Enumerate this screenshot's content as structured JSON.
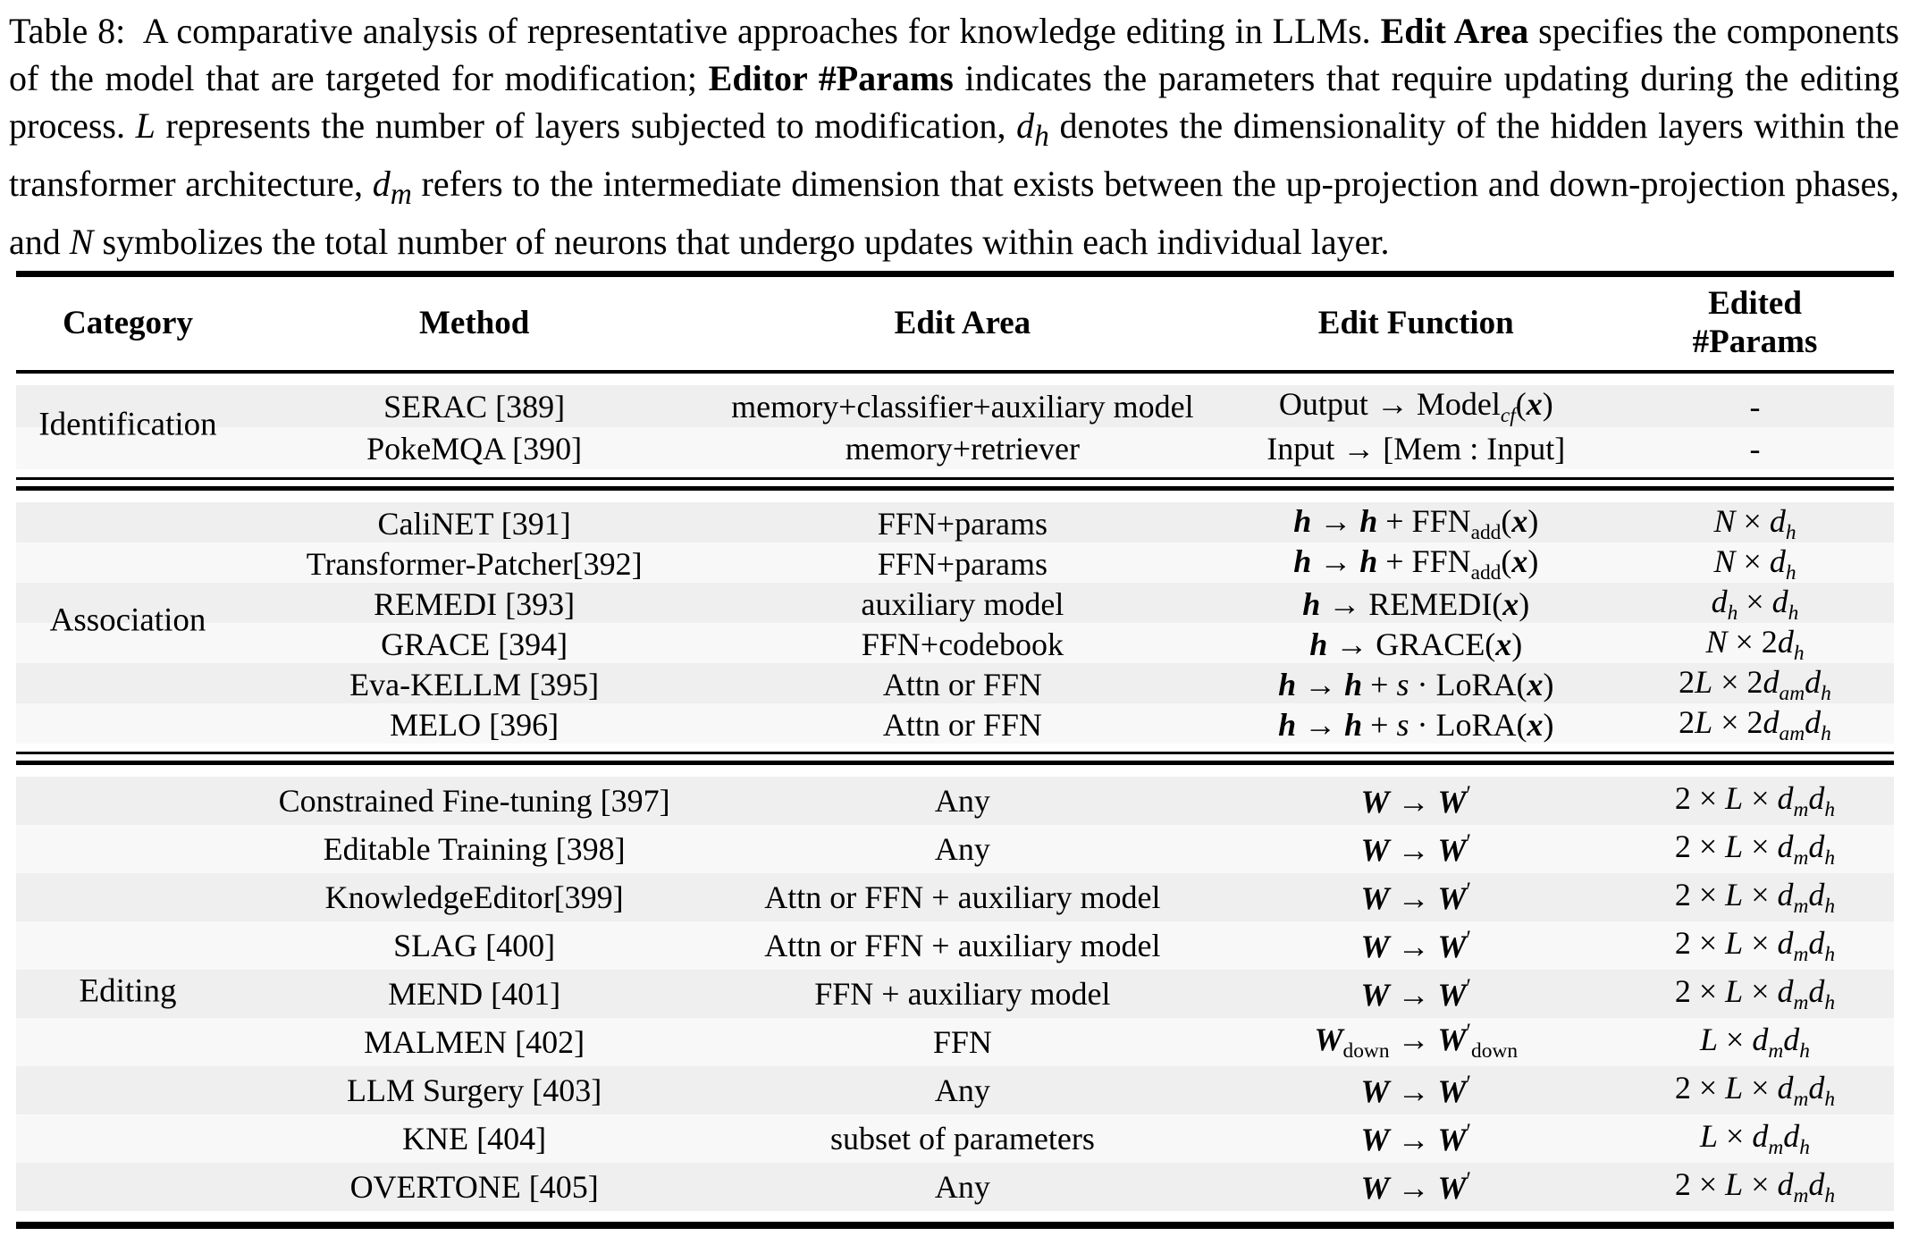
{
  "caption": {
    "html": "Table 8:&nbsp; A comparative analysis of representative approaches for knowledge editing in LLMs. <b>Edit Area</b> specifies the components of the model that are targeted for modification; <b>Editor #Params</b> indicates the parameters that require updating during the editing process. <i>L</i> represents the number of layers subjected to modification, <i>d<sub>h</sub></i> denotes the dimensionality of the hidden layers within the transformer architecture, <i>d<sub>m</sub></i> refers to the intermediate dimension that exists between the up-projection and down-projection phases, and <i>N</i> symbolizes the total number of neurons that undergo updates within each individual layer."
  },
  "table": {
    "stripe_colors": {
      "odd_row": "#efefef",
      "even_row": "#f8f8f9",
      "rule": "#000000"
    },
    "headers": {
      "category": "Category",
      "method": "Method",
      "edit_area": "Edit Area",
      "edit_function": "Edit Function",
      "edited_params": "Edited\n#Params"
    },
    "sections": [
      {
        "category": "Identification",
        "rows": [
          {
            "method": "SERAC [389]",
            "edit_area": "memory+classifier+auxiliary model",
            "edit_function_html": "Output → Model<sub><i>cf</i></sub>(<b><i>x</i></b>)",
            "edited_params_html": "-"
          },
          {
            "method": "PokeMQA [390]",
            "edit_area": "memory+retriever",
            "edit_function_html": "Input → [Mem : Input]",
            "edited_params_html": "-"
          }
        ]
      },
      {
        "category": "Association",
        "rows": [
          {
            "method": "CaliNET [391]",
            "edit_area": "FFN+params",
            "edit_function_html": "<b><i>h</i></b> → <b><i>h</i></b> + FFN<sub>add</sub>(<b><i>x</i></b>)",
            "edited_params_html": "<i>N</i> × <i>d<sub>h</sub></i>"
          },
          {
            "method": "Transformer-Patcher[392]",
            "edit_area": "FFN+params",
            "edit_function_html": "<b><i>h</i></b> → <b><i>h</i></b> + FFN<sub>add</sub>(<b><i>x</i></b>)",
            "edited_params_html": "<i>N</i> × <i>d<sub>h</sub></i>"
          },
          {
            "method": "REMEDI [393]",
            "edit_area": "auxiliary model",
            "edit_function_html": "<b><i>h</i></b> → REMEDI(<b><i>x</i></b>)",
            "edited_params_html": "<i>d<sub>h</sub></i> × <i>d<sub>h</sub></i>"
          },
          {
            "method": "GRACE [394]",
            "edit_area": "FFN+codebook",
            "edit_function_html": "<b><i>h</i></b> → GRACE(<b><i>x</i></b>)",
            "edited_params_html": "<i>N</i> × 2<i>d<sub>h</sub></i>"
          },
          {
            "method": "Eva-KELLM [395]",
            "edit_area": "Attn or FFN",
            "edit_function_html": "<b><i>h</i></b> → <b><i>h</i></b> + <i>s</i> · LoRA(<b><i>x</i></b>)",
            "edited_params_html": "2<i>L</i> × 2<i>d<sub>am</sub>d<sub>h</sub></i>"
          },
          {
            "method": "MELO [396]",
            "edit_area": "Attn or FFN",
            "edit_function_html": "<b><i>h</i></b> → <b><i>h</i></b> + <i>s</i> · LoRA(<b><i>x</i></b>)",
            "edited_params_html": "2<i>L</i> × 2<i>d<sub>am</sub>d<sub>h</sub></i>"
          }
        ]
      },
      {
        "category": "Editing",
        "rows": [
          {
            "method": "Constrained Fine-tuning [397]",
            "edit_area": "Any",
            "edit_function_html": "<b><i>W</i></b> → <b><i>W</i></b><sup>′</sup>",
            "edited_params_html": "2 × <i>L</i> × <i>d<sub>m</sub>d<sub>h</sub></i>"
          },
          {
            "method": "Editable Training [398]",
            "edit_area": "Any",
            "edit_function_html": "<b><i>W</i></b> → <b><i>W</i></b><sup>′</sup>",
            "edited_params_html": "2 × <i>L</i> × <i>d<sub>m</sub>d<sub>h</sub></i>"
          },
          {
            "method": "KnowledgeEditor[399]",
            "edit_area": "Attn or FFN + auxiliary model",
            "edit_function_html": "<b><i>W</i></b> → <b><i>W</i></b><sup>′</sup>",
            "edited_params_html": "2 × <i>L</i> × <i>d<sub>m</sub>d<sub>h</sub></i>"
          },
          {
            "method": "SLAG [400]",
            "edit_area": "Attn or FFN + auxiliary model",
            "edit_function_html": "<b><i>W</i></b> → <b><i>W</i></b><sup>′</sup>",
            "edited_params_html": "2 × <i>L</i> × <i>d<sub>m</sub>d<sub>h</sub></i>"
          },
          {
            "method": "MEND [401]",
            "edit_area": "FFN + auxiliary model",
            "edit_function_html": "<b><i>W</i></b> → <b><i>W</i></b><sup>′</sup>",
            "edited_params_html": "2 × <i>L</i> × <i>d<sub>m</sub>d<sub>h</sub></i>"
          },
          {
            "method": "MALMEN [402]",
            "edit_area": "FFN",
            "edit_function_html": "<b><i>W</i></b><sub>down</sub> → <b><i>W</i></b><sup>′</sup><sub>down</sub>",
            "edited_params_html": "<i>L</i> × <i>d<sub>m</sub>d<sub>h</sub></i>"
          },
          {
            "method": "LLM Surgery [403]",
            "edit_area": "Any",
            "edit_function_html": "<b><i>W</i></b> → <b><i>W</i></b><sup>′</sup>",
            "edited_params_html": "2 × <i>L</i> × <i>d<sub>m</sub>d<sub>h</sub></i>"
          },
          {
            "method": "KNE [404]",
            "edit_area": "subset of parameters",
            "edit_function_html": "<b><i>W</i></b> → <b><i>W</i></b><sup>′</sup>",
            "edited_params_html": "<i>L</i> × <i>d<sub>m</sub>d<sub>h</sub></i>"
          },
          {
            "method": "OVERTONE [405]",
            "edit_area": "Any",
            "edit_function_html": "<b><i>W</i></b> → <b><i>W</i></b><sup>′</sup>",
            "edited_params_html": "2 × <i>L</i> × <i>d<sub>m</sub>d<sub>h</sub></i>"
          }
        ]
      }
    ]
  }
}
